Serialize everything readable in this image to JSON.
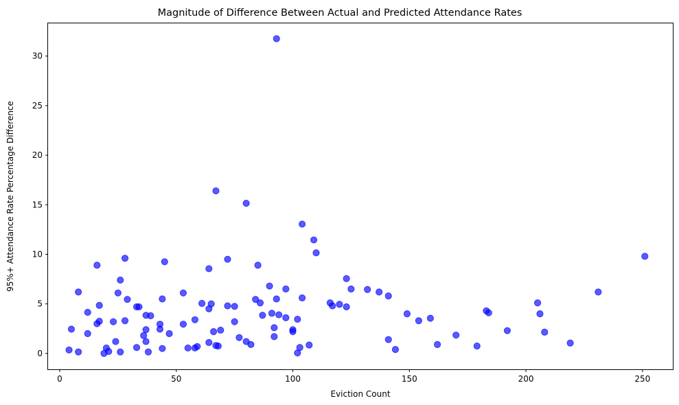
{
  "chart_data": {
    "type": "scatter",
    "title": "Magnitude of Difference Between Actual and Predicted Attendance Rates",
    "xlabel": "Eviction Count",
    "ylabel": "95%+ Attendance Rate Percentage Difference",
    "xlim": [
      -5,
      263
    ],
    "ylim": [
      -1.6,
      33.3
    ],
    "xticks": [
      0,
      50,
      100,
      150,
      200,
      250
    ],
    "yticks": [
      0,
      5,
      10,
      15,
      20,
      25,
      30
    ],
    "grid": false,
    "marker_color": "#0000ff",
    "marker_alpha": 0.65,
    "points": [
      [
        4,
        0.35
      ],
      [
        5,
        2.45
      ],
      [
        8,
        0.15
      ],
      [
        8,
        6.2
      ],
      [
        12,
        4.15
      ],
      [
        12,
        2.0
      ],
      [
        16,
        8.9
      ],
      [
        16,
        3.0
      ],
      [
        17,
        4.85
      ],
      [
        17,
        3.25
      ],
      [
        19,
        0.0
      ],
      [
        20,
        0.55
      ],
      [
        21,
        0.2
      ],
      [
        23,
        3.2
      ],
      [
        24,
        1.2
      ],
      [
        25,
        6.1
      ],
      [
        26,
        7.4
      ],
      [
        26,
        0.15
      ],
      [
        28,
        9.6
      ],
      [
        28,
        3.3
      ],
      [
        29,
        5.45
      ],
      [
        33,
        0.6
      ],
      [
        33,
        4.7
      ],
      [
        34,
        4.7
      ],
      [
        36,
        1.8
      ],
      [
        37,
        3.85
      ],
      [
        37,
        2.4
      ],
      [
        37,
        1.2
      ],
      [
        38,
        0.15
      ],
      [
        39,
        3.8
      ],
      [
        43,
        2.95
      ],
      [
        43,
        2.45
      ],
      [
        44,
        5.5
      ],
      [
        44,
        0.5
      ],
      [
        45,
        9.25
      ],
      [
        47,
        2.0
      ],
      [
        53,
        6.1
      ],
      [
        53,
        2.95
      ],
      [
        55,
        0.55
      ],
      [
        58,
        3.4
      ],
      [
        58,
        0.55
      ],
      [
        59,
        0.7
      ],
      [
        61,
        5.05
      ],
      [
        64,
        8.55
      ],
      [
        64,
        4.5
      ],
      [
        64,
        1.1
      ],
      [
        65,
        5.0
      ],
      [
        66,
        2.2
      ],
      [
        67,
        16.4
      ],
      [
        67,
        0.8
      ],
      [
        68,
        0.75
      ],
      [
        69,
        2.35
      ],
      [
        72,
        9.5
      ],
      [
        72,
        4.8
      ],
      [
        75,
        4.75
      ],
      [
        75,
        3.2
      ],
      [
        77,
        1.6
      ],
      [
        80,
        15.15
      ],
      [
        80,
        1.2
      ],
      [
        82,
        0.9
      ],
      [
        84,
        5.45
      ],
      [
        85,
        8.9
      ],
      [
        86,
        5.1
      ],
      [
        87,
        3.85
      ],
      [
        90,
        6.8
      ],
      [
        91,
        4.05
      ],
      [
        92,
        2.6
      ],
      [
        92,
        1.7
      ],
      [
        93,
        31.75
      ],
      [
        93,
        5.5
      ],
      [
        94,
        3.9
      ],
      [
        97,
        6.5
      ],
      [
        97,
        3.6
      ],
      [
        100,
        2.4
      ],
      [
        100,
        2.2
      ],
      [
        102,
        3.45
      ],
      [
        102,
        0.05
      ],
      [
        103,
        0.6
      ],
      [
        104,
        13.05
      ],
      [
        104,
        5.6
      ],
      [
        107,
        0.85
      ],
      [
        109,
        11.45
      ],
      [
        110,
        10.15
      ],
      [
        116,
        5.1
      ],
      [
        117,
        4.8
      ],
      [
        120,
        4.95
      ],
      [
        123,
        7.55
      ],
      [
        123,
        4.7
      ],
      [
        125,
        6.5
      ],
      [
        132,
        6.45
      ],
      [
        137,
        6.2
      ],
      [
        141,
        5.8
      ],
      [
        141,
        1.4
      ],
      [
        144,
        0.4
      ],
      [
        149,
        4.0
      ],
      [
        154,
        3.3
      ],
      [
        159,
        3.55
      ],
      [
        162,
        0.9
      ],
      [
        170,
        1.85
      ],
      [
        179,
        0.75
      ],
      [
        183,
        4.3
      ],
      [
        184,
        4.1
      ],
      [
        192,
        2.3
      ],
      [
        205,
        5.1
      ],
      [
        206,
        4.0
      ],
      [
        208,
        2.15
      ],
      [
        219,
        1.05
      ],
      [
        231,
        6.2
      ],
      [
        251,
        9.8
      ]
    ]
  }
}
